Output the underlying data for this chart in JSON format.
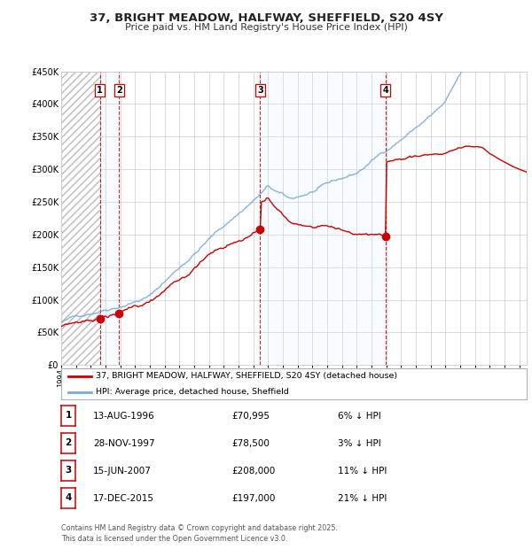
{
  "title": "37, BRIGHT MEADOW, HALFWAY, SHEFFIELD, S20 4SY",
  "subtitle": "Price paid vs. HM Land Registry's House Price Index (HPI)",
  "x_start_year": 1994,
  "x_end_year": 2025.5,
  "y_min": 0,
  "y_max": 450000,
  "y_ticks": [
    0,
    50000,
    100000,
    150000,
    200000,
    250000,
    300000,
    350000,
    400000,
    450000
  ],
  "y_tick_labels": [
    "£0",
    "£50K",
    "£100K",
    "£150K",
    "£200K",
    "£250K",
    "£300K",
    "£350K",
    "£400K",
    "£450K"
  ],
  "sales": [
    {
      "label": "1",
      "date_dec": 1996.617,
      "price": 70995
    },
    {
      "label": "2",
      "date_dec": 1997.908,
      "price": 78500
    },
    {
      "label": "3",
      "date_dec": 2007.458,
      "price": 208000
    },
    {
      "label": "4",
      "date_dec": 2015.958,
      "price": 197000
    }
  ],
  "vline_color": "#cc0000",
  "vband_color": "#ddeeff",
  "legend_line1": "37, BRIGHT MEADOW, HALFWAY, SHEFFIELD, S20 4SY (detached house)",
  "legend_line2": "HPI: Average price, detached house, Sheffield",
  "table_rows": [
    {
      "num": "1",
      "date": "13-AUG-1996",
      "price": "£70,995",
      "pct": "6% ↓ HPI"
    },
    {
      "num": "2",
      "date": "28-NOV-1997",
      "price": "£78,500",
      "pct": "3% ↓ HPI"
    },
    {
      "num": "3",
      "date": "15-JUN-2007",
      "price": "£208,000",
      "pct": "11% ↓ HPI"
    },
    {
      "num": "4",
      "date": "17-DEC-2015",
      "price": "£197,000",
      "pct": "21% ↓ HPI"
    }
  ],
  "footnote": "Contains HM Land Registry data © Crown copyright and database right 2025.\nThis data is licensed under the Open Government Licence v3.0.",
  "hpi_color": "#7aaadd",
  "price_color": "#cc0000",
  "grid_color": "#cccccc",
  "bg_color": "#ffffff"
}
